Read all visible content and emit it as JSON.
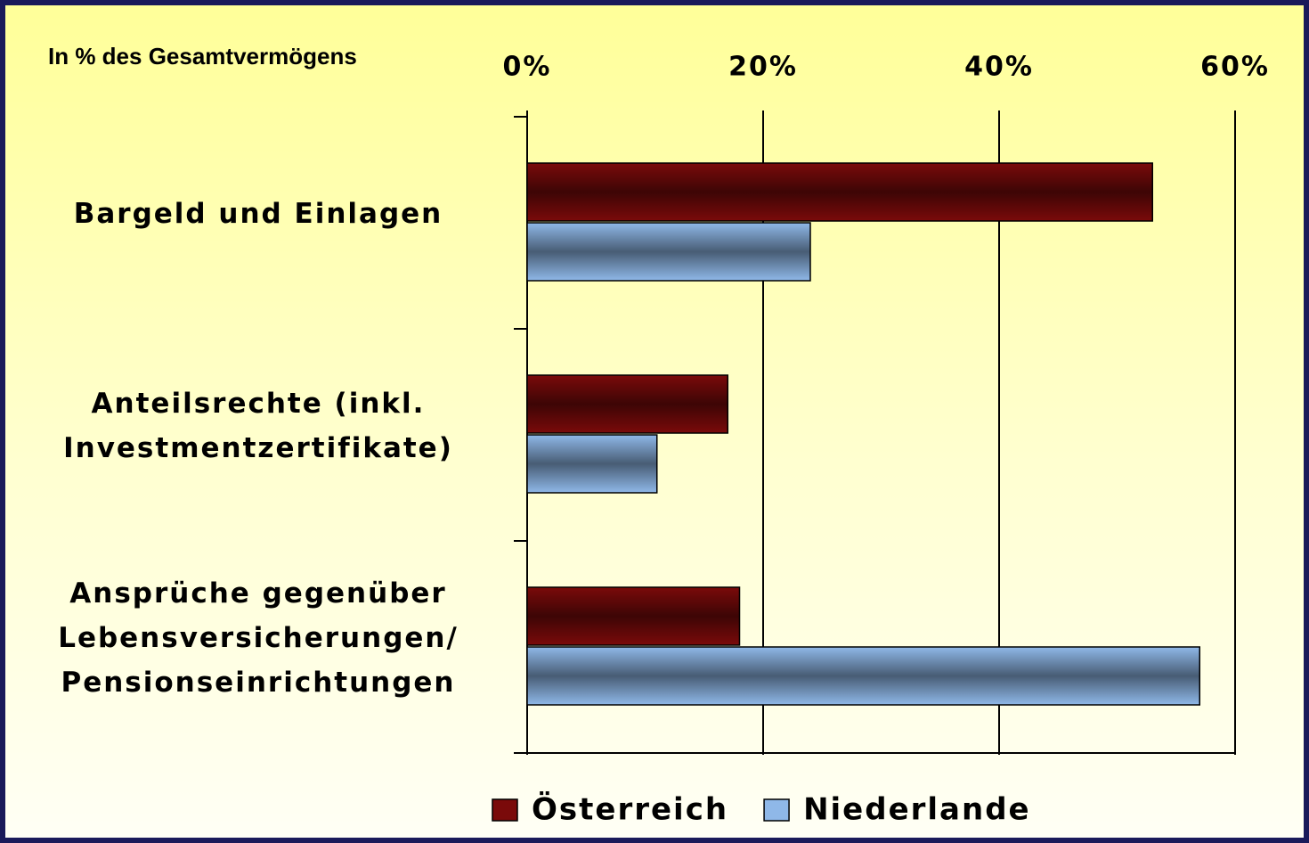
{
  "chart_data": {
    "type": "bar",
    "orientation": "horizontal",
    "subtitle": "In % des Gesamtvermögens",
    "categories": [
      "Bargeld und Einlagen",
      "Anteilsrechte (inkl.\nInvestmentzertifikate)",
      "Ansprüche gegenüber\nLebensversicherungen/\nPensionseinrichtungen"
    ],
    "series": [
      {
        "name": "Österreich",
        "color": "#7a0a0a",
        "values": [
          53,
          17,
          18
        ]
      },
      {
        "name": "Niederlande",
        "color": "#8fb8e8",
        "values": [
          24,
          11,
          57
        ]
      }
    ],
    "xlim": [
      0,
      60
    ],
    "xticks": [
      {
        "value": 0,
        "label": "0%"
      },
      {
        "value": 20,
        "label": "20%"
      },
      {
        "value": 40,
        "label": "40%"
      },
      {
        "value": 60,
        "label": "60%"
      }
    ],
    "grid": true,
    "legend": "bottom"
  }
}
